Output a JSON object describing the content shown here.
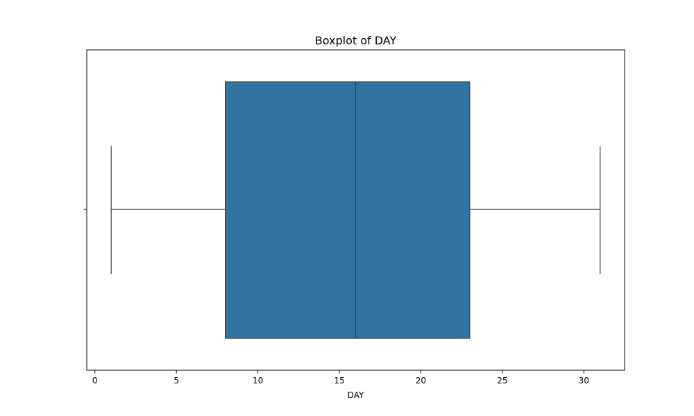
{
  "chart_data": {
    "type": "box",
    "title": "Boxplot of DAY",
    "xlabel": "DAY",
    "ylabel": "",
    "orientation": "horizontal",
    "xlim": [
      -0.5,
      32.5
    ],
    "xticks": [
      0,
      5,
      10,
      15,
      20,
      25,
      30
    ],
    "grid": false,
    "series": [
      {
        "whisker_low": 1,
        "q1": 8,
        "median": 16,
        "q3": 23,
        "whisker_high": 31
      }
    ],
    "colors": {
      "box_fill": "#3274a1",
      "line": "#3f3f3f",
      "axes": "#000000"
    }
  }
}
